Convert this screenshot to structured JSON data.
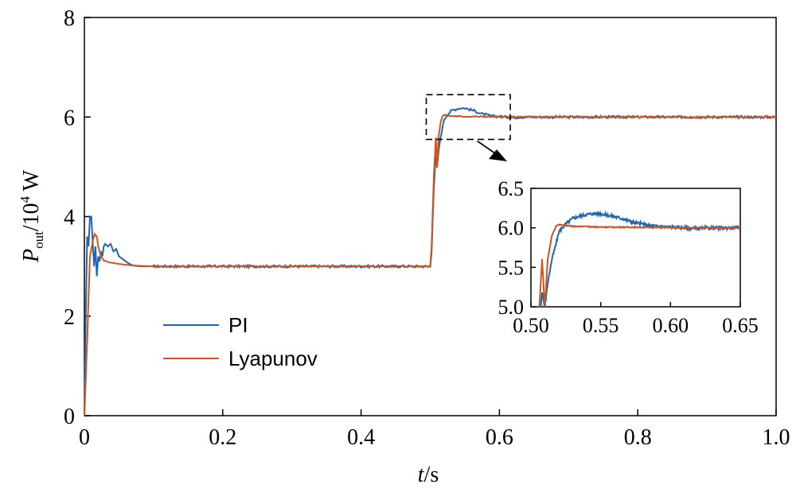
{
  "chart_data": [
    {
      "type": "line",
      "title": "",
      "xlabel": {
        "italic": "t",
        "rest": "/s"
      },
      "ylabel": {
        "italic": "P",
        "subscript": "out",
        "rest": "/10",
        "superscript": "4",
        "unit": " W"
      },
      "xlim": [
        0,
        1.0
      ],
      "ylim": [
        0,
        8
      ],
      "xticks": [
        "0",
        "0.2",
        "0.4",
        "0.6",
        "0.8",
        "1.0"
      ],
      "yticks": [
        "0",
        "2",
        "4",
        "6",
        "8"
      ],
      "grid": false,
      "legend_position": "lower-left",
      "series": [
        {
          "name": "PI",
          "color": "#2166ac",
          "x": [
            0,
            0.002,
            0.004,
            0.006,
            0.008,
            0.01,
            0.012,
            0.014,
            0.016,
            0.018,
            0.02,
            0.022,
            0.024,
            0.026,
            0.028,
            0.03,
            0.034,
            0.038,
            0.042,
            0.046,
            0.05,
            0.055,
            0.06,
            0.065,
            0.07,
            0.08,
            0.09,
            0.1,
            0.5,
            0.502,
            0.505,
            0.508,
            0.51,
            0.512,
            0.515,
            0.518,
            0.52,
            0.525,
            0.53,
            0.535,
            0.54,
            0.545,
            0.55,
            0.555,
            0.56,
            0.565,
            0.57,
            0.575,
            0.58,
            0.585,
            0.59,
            0.6,
            0.61,
            0.62,
            0.63,
            0.64,
            0.65,
            1.0
          ],
          "y": [
            0,
            2.0,
            3.6,
            3.4,
            4.0,
            4.0,
            3.5,
            3.0,
            3.4,
            2.8,
            3.2,
            3.1,
            3.3,
            3.2,
            3.4,
            3.45,
            3.4,
            3.45,
            3.3,
            3.35,
            3.2,
            3.15,
            3.1,
            3.05,
            3.02,
            3.0,
            3.0,
            3.0,
            3.0,
            3.3,
            4.5,
            5.2,
            4.98,
            5.3,
            5.6,
            5.8,
            5.95,
            6.05,
            6.12,
            6.15,
            6.17,
            6.18,
            6.18,
            6.16,
            6.14,
            6.12,
            6.09,
            6.06,
            6.05,
            6.03,
            6.02,
            6.01,
            6.0,
            5.99,
            6.0,
            6.0,
            6.0,
            6.0
          ]
        },
        {
          "name": "Lyapunov",
          "color": "#d0541f",
          "x": [
            0,
            0.004,
            0.008,
            0.012,
            0.015,
            0.018,
            0.02,
            0.024,
            0.028,
            0.032,
            0.036,
            0.04,
            0.05,
            0.06,
            0.08,
            0.1,
            0.5,
            0.502,
            0.505,
            0.508,
            0.51,
            0.512,
            0.515,
            0.518,
            0.52,
            0.525,
            0.53,
            0.55,
            0.65,
            1.0
          ],
          "y": [
            0,
            1.5,
            3.2,
            3.5,
            3.65,
            3.6,
            3.4,
            3.2,
            3.12,
            3.1,
            3.08,
            3.07,
            3.05,
            3.03,
            3.01,
            3.0,
            3.0,
            3.4,
            4.7,
            5.6,
            4.98,
            5.6,
            5.9,
            6.02,
            6.04,
            6.03,
            6.02,
            6.01,
            6.0,
            6.0
          ]
        }
      ],
      "highlight_box": {
        "x": [
          0.5,
          0.61
        ],
        "y": [
          5.55,
          6.45
        ]
      }
    },
    {
      "type": "line",
      "title": "",
      "xlabel": "",
      "ylabel": "",
      "xlim": [
        0.5,
        0.65
      ],
      "ylim": [
        5.0,
        6.5
      ],
      "xticks": [
        "0.50",
        "0.55",
        "0.60",
        "0.65"
      ],
      "yticks": [
        "5.0",
        "5.5",
        "6.0",
        "6.5"
      ],
      "grid": false,
      "series_ref": [
        "PI",
        "Lyapunov"
      ]
    }
  ]
}
